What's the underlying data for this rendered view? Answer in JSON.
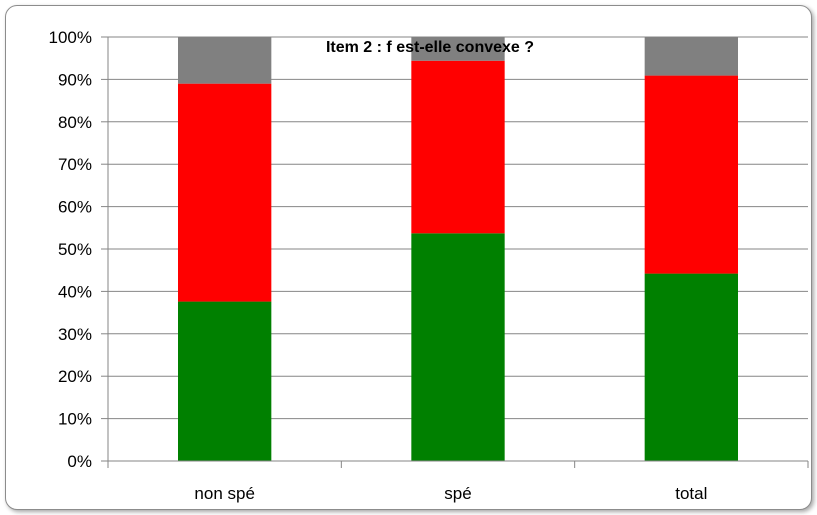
{
  "chart_data": {
    "type": "bar",
    "stacked": true,
    "normalized": true,
    "title": "Item 2 : f est-elle convexe ?",
    "categories": [
      "non spé",
      "spé",
      "total"
    ],
    "series": [
      {
        "values": [
          37.6,
          53.7,
          44.2
        ],
        "color": "#008000"
      },
      {
        "values": [
          51.4,
          40.7,
          46.7
        ],
        "color": "#ff0000"
      },
      {
        "values": [
          11.0,
          5.6,
          9.1
        ],
        "color": "#808080"
      }
    ],
    "y_ticks": [
      "0%",
      "10%",
      "20%",
      "30%",
      "40%",
      "50%",
      "60%",
      "70%",
      "80%",
      "90%",
      "100%"
    ],
    "ylim": [
      0,
      100
    ],
    "grid": true,
    "legend": "none"
  }
}
